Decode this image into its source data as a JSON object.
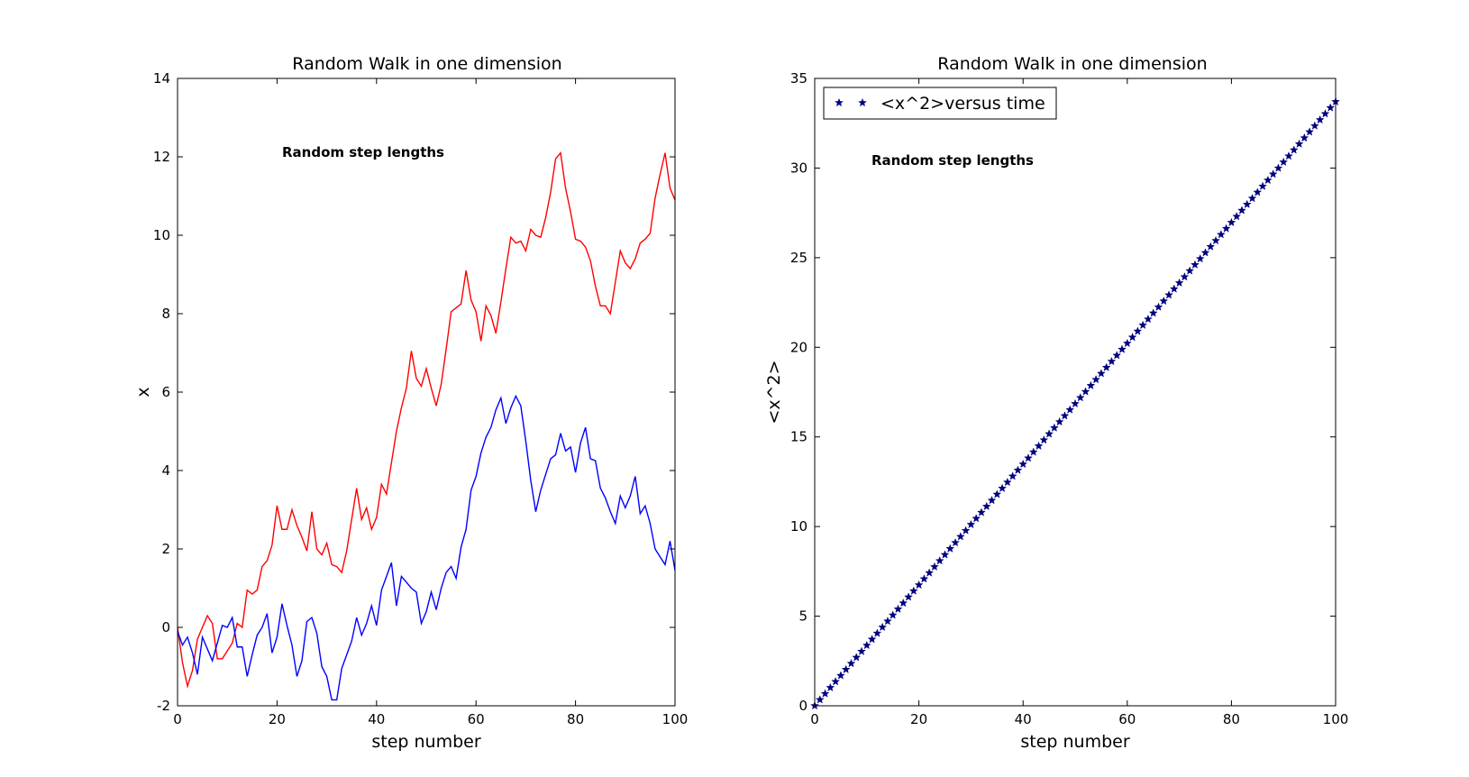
{
  "chart_data": [
    {
      "type": "line",
      "title": "Random Walk in one dimension",
      "xlabel": "step number",
      "ylabel": "x",
      "xlim": [
        0,
        100
      ],
      "ylim": [
        -2,
        14
      ],
      "xticks": [
        0,
        20,
        40,
        60,
        80,
        100
      ],
      "yticks": [
        -2,
        0,
        2,
        4,
        6,
        8,
        10,
        12,
        14
      ],
      "grid": false,
      "annotation": "Random step lengths",
      "colors": {
        "red_series": "#ff0000",
        "blue_series": "#0000ff"
      },
      "series": [
        {
          "color": "#ff0000",
          "values": [
            0.0,
            -0.9,
            -1.5,
            -1.1,
            -0.3,
            0.0,
            0.3,
            0.1,
            -0.8,
            -0.8,
            -0.6,
            -0.4,
            0.1,
            0.0,
            0.95,
            0.85,
            0.95,
            1.55,
            1.7,
            2.1,
            3.1,
            2.5,
            2.5,
            3.0,
            2.6,
            2.3,
            1.95,
            2.95,
            2.0,
            1.85,
            2.15,
            1.6,
            1.55,
            1.4,
            1.95,
            2.75,
            3.55,
            2.75,
            3.05,
            2.5,
            2.8,
            3.65,
            3.4,
            4.2,
            5.0,
            5.6,
            6.1,
            7.05,
            6.35,
            6.15,
            6.6,
            6.1,
            5.65,
            6.2,
            7.1,
            8.05,
            8.15,
            8.25,
            9.1,
            8.35,
            8.05,
            7.3,
            8.2,
            7.95,
            7.5,
            8.3,
            9.15,
            9.95,
            9.8,
            9.85,
            9.6,
            10.15,
            10.0,
            9.95,
            10.45,
            11.1,
            11.95,
            12.1,
            11.2,
            10.6,
            9.9,
            9.85,
            9.7,
            9.35,
            8.7,
            8.2,
            8.2,
            8.0,
            8.8,
            9.6,
            9.3,
            9.15,
            9.4,
            9.8,
            9.9,
            10.05,
            10.95,
            11.55,
            12.1,
            11.2,
            10.9
          ]
        },
        {
          "color": "#0000ff",
          "values": [
            -0.1,
            -0.45,
            -0.25,
            -0.65,
            -1.2,
            -0.25,
            -0.55,
            -0.85,
            -0.4,
            0.05,
            0.0,
            0.25,
            -0.5,
            -0.5,
            -1.25,
            -0.7,
            -0.2,
            0.0,
            0.35,
            -0.65,
            -0.25,
            0.6,
            0.05,
            -0.45,
            -1.25,
            -0.85,
            0.15,
            0.25,
            -0.15,
            -1.0,
            -1.25,
            -1.85,
            -1.85,
            -1.05,
            -0.7,
            -0.35,
            0.25,
            -0.2,
            0.1,
            0.55,
            0.05,
            0.95,
            1.3,
            1.65,
            0.55,
            1.3,
            1.15,
            1.0,
            0.9,
            0.1,
            0.4,
            0.9,
            0.45,
            1.0,
            1.4,
            1.55,
            1.25,
            2.05,
            2.5,
            3.5,
            3.85,
            4.45,
            4.85,
            5.1,
            5.55,
            5.85,
            5.2,
            5.6,
            5.9,
            5.65,
            4.75,
            3.75,
            2.95,
            3.5,
            3.9,
            4.3,
            4.4,
            4.95,
            4.5,
            4.6,
            3.95,
            4.7,
            5.1,
            4.3,
            4.25,
            3.55,
            3.3,
            2.95,
            2.65,
            3.35,
            3.05,
            3.35,
            3.85,
            2.9,
            3.1,
            2.65,
            2.0,
            1.8,
            1.6,
            2.2,
            1.45
          ]
        }
      ]
    },
    {
      "type": "scatter",
      "title": "Random Walk in one dimension",
      "xlabel": "step number",
      "ylabel": "<x^2>",
      "xlim": [
        0,
        100
      ],
      "ylim": [
        0,
        35
      ],
      "xticks": [
        0,
        20,
        40,
        60,
        80,
        100
      ],
      "yticks": [
        0,
        5,
        10,
        15,
        20,
        25,
        30,
        35
      ],
      "grid": false,
      "annotation": "Random step lengths",
      "legend": {
        "position": "top-left",
        "entries": [
          "<x^2>versus time"
        ]
      },
      "marker": "star",
      "marker_color": "#00007f",
      "series": [
        {
          "name": "<x^2>versus time",
          "x_start": 0,
          "x_end": 100,
          "x_step": 1,
          "y_start": 0.0,
          "y_end": 33.7
        }
      ]
    }
  ]
}
